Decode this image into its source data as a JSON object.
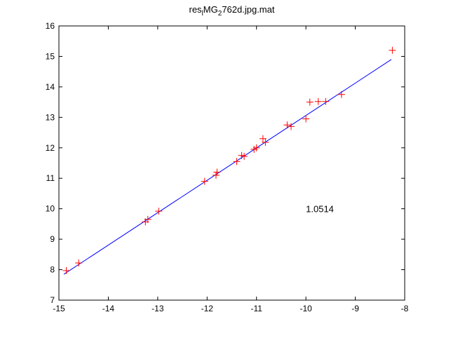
{
  "chart_data": {
    "type": "scatter",
    "title": {
      "parts": [
        {
          "text": "res",
          "shift": "none"
        },
        {
          "text": "l",
          "shift": "sub"
        },
        {
          "text": "MG",
          "shift": "none"
        },
        {
          "text": "2",
          "shift": "sub"
        },
        {
          "text": "762d.jpg.mat",
          "shift": "none"
        }
      ]
    },
    "xlim": [
      -15,
      -8
    ],
    "ylim": [
      7,
      16
    ],
    "xticks": [
      -15,
      -14,
      -13,
      -12,
      -11,
      -10,
      -9,
      -8
    ],
    "yticks": [
      7,
      8,
      9,
      10,
      11,
      12,
      13,
      14,
      15,
      16
    ],
    "grid": false,
    "series": [
      {
        "style": "scatter",
        "marker": "plus",
        "color": "#ff0000",
        "points": [
          [
            -14.85,
            7.97
          ],
          [
            -14.6,
            8.22
          ],
          [
            -13.25,
            9.57
          ],
          [
            -13.2,
            9.65
          ],
          [
            -12.98,
            9.92
          ],
          [
            -12.05,
            10.9
          ],
          [
            -11.82,
            11.1
          ],
          [
            -11.8,
            11.2
          ],
          [
            -11.4,
            11.55
          ],
          [
            -11.3,
            11.75
          ],
          [
            -11.25,
            11.72
          ],
          [
            -11.05,
            11.95
          ],
          [
            -11.0,
            12.0
          ],
          [
            -10.87,
            12.3
          ],
          [
            -10.82,
            12.18
          ],
          [
            -10.38,
            12.75
          ],
          [
            -10.3,
            12.7
          ],
          [
            -10.0,
            12.95
          ],
          [
            -9.92,
            13.5
          ],
          [
            -9.75,
            13.52
          ],
          [
            -9.6,
            13.52
          ],
          [
            -9.28,
            13.75
          ],
          [
            -8.25,
            15.2
          ]
        ]
      },
      {
        "style": "line",
        "color": "#0000ff",
        "points": [
          [
            -14.9,
            7.85
          ],
          [
            -8.27,
            14.9
          ]
        ]
      }
    ],
    "annotations": [
      {
        "text": "1.0514",
        "x": -10.0,
        "y": 10.0
      }
    ]
  }
}
